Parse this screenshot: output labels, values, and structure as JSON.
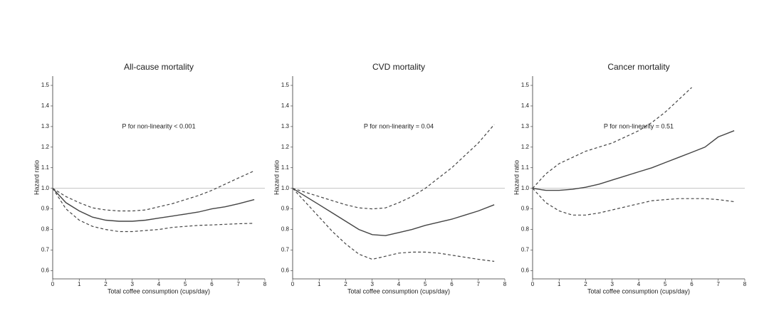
{
  "chart_data": [
    {
      "type": "line",
      "title": "All-cause mortality",
      "xlabel": "Total coffee consumption (cups/day)",
      "ylabel": "Hazard ratio",
      "annotation": "P for non-linearity < 0.001",
      "x": [
        0,
        0.5,
        1,
        1.5,
        2,
        2.5,
        3,
        3.5,
        4,
        4.5,
        5,
        5.5,
        6,
        6.5,
        7,
        7.6
      ],
      "series": [
        {
          "color": "#444",
          "dash": false,
          "values": [
            1.0,
            0.93,
            0.89,
            0.86,
            0.845,
            0.84,
            0.84,
            0.845,
            0.855,
            0.865,
            0.875,
            0.885,
            0.9,
            0.91,
            0.925,
            0.945
          ]
        },
        {
          "color": "#444",
          "dash": true,
          "values": [
            1.0,
            0.96,
            0.93,
            0.905,
            0.895,
            0.89,
            0.89,
            0.895,
            0.91,
            0.925,
            0.945,
            0.965,
            0.99,
            1.02,
            1.05,
            1.085
          ]
        },
        {
          "color": "#444",
          "dash": true,
          "values": [
            1.0,
            0.9,
            0.845,
            0.815,
            0.8,
            0.79,
            0.79,
            0.795,
            0.8,
            0.81,
            0.815,
            0.82,
            0.822,
            0.825,
            0.828,
            0.83
          ]
        }
      ],
      "hline": 1,
      "xlim": [
        0,
        8
      ],
      "xticks": [
        0,
        1,
        2,
        3,
        4,
        5,
        6,
        7,
        8
      ],
      "ylim": [
        0.56,
        1.545
      ],
      "yticks": [
        0.6,
        0.7,
        0.8,
        0.9,
        {
          "value": 1,
          "label": "1.0"
        },
        1.1,
        1.2,
        1.3,
        1.4,
        1.5
      ]
    },
    {
      "type": "line",
      "title": "CVD mortality",
      "xlabel": "Total coffee consumption (cups/day)",
      "ylabel": "Hazard ratio",
      "annotation": "P for non-linearity = 0.04",
      "x": [
        0,
        0.5,
        1,
        1.5,
        2,
        2.5,
        3,
        3.5,
        4,
        4.5,
        5,
        5.5,
        6,
        6.5,
        7,
        7.6
      ],
      "series": [
        {
          "color": "#444",
          "dash": false,
          "values": [
            1.0,
            0.96,
            0.92,
            0.88,
            0.84,
            0.8,
            0.775,
            0.77,
            0.785,
            0.8,
            0.82,
            0.835,
            0.85,
            0.87,
            0.89,
            0.92
          ]
        },
        {
          "color": "#444",
          "dash": true,
          "values": [
            1.0,
            0.98,
            0.96,
            0.94,
            0.92,
            0.905,
            0.9,
            0.905,
            0.93,
            0.96,
            1.0,
            1.05,
            1.1,
            1.16,
            1.22,
            1.31
          ]
        },
        {
          "color": "#444",
          "dash": true,
          "values": [
            1.0,
            0.93,
            0.86,
            0.79,
            0.73,
            0.68,
            0.655,
            0.67,
            0.685,
            0.69,
            0.69,
            0.685,
            0.675,
            0.665,
            0.655,
            0.645
          ]
        }
      ],
      "hline": 1,
      "xlim": [
        0,
        8
      ],
      "xticks": [
        0,
        1,
        2,
        3,
        4,
        5,
        6,
        7,
        8
      ],
      "ylim": [
        0.56,
        1.545
      ],
      "yticks": [
        0.6,
        0.7,
        0.8,
        0.9,
        {
          "value": 1,
          "label": "1.0"
        },
        1.1,
        1.2,
        1.3,
        1.4,
        1.5
      ]
    },
    {
      "type": "line",
      "title": "Cancer mortality",
      "xlabel": "Total coffee consumption (cups/day)",
      "ylabel": "Hazard ratio",
      "annotation": "P for non-linearity = 0.51",
      "x": [
        0,
        0.5,
        1,
        1.5,
        2,
        2.5,
        3,
        3.5,
        4,
        4.5,
        5,
        5.5,
        6,
        6.5,
        7,
        7.6
      ],
      "series": [
        {
          "color": "#444",
          "dash": false,
          "values": [
            1.0,
            0.99,
            0.99,
            0.995,
            1.005,
            1.02,
            1.04,
            1.06,
            1.08,
            1.1,
            1.125,
            1.15,
            1.175,
            1.2,
            1.25,
            1.28
          ]
        },
        {
          "color": "#444",
          "dash": true,
          "values": [
            1.0,
            1.07,
            1.12,
            1.15,
            1.18,
            1.2,
            1.22,
            1.25,
            1.28,
            1.32,
            1.37,
            1.43,
            1.49,
            null,
            null,
            null
          ]
        },
        {
          "color": "#444",
          "dash": true,
          "values": [
            1.0,
            0.93,
            0.89,
            0.87,
            0.87,
            0.88,
            0.895,
            0.91,
            0.925,
            0.94,
            0.945,
            0.95,
            0.95,
            0.95,
            0.945,
            0.935
          ]
        }
      ],
      "hline": 1,
      "xlim": [
        0,
        8
      ],
      "xticks": [
        0,
        1,
        2,
        3,
        4,
        5,
        6,
        7,
        8
      ],
      "ylim": [
        0.56,
        1.545
      ],
      "yticks": [
        0.6,
        0.7,
        0.8,
        0.9,
        {
          "value": 1,
          "label": "1.0"
        },
        1.1,
        1.2,
        1.3,
        1.4,
        1.5
      ]
    }
  ]
}
